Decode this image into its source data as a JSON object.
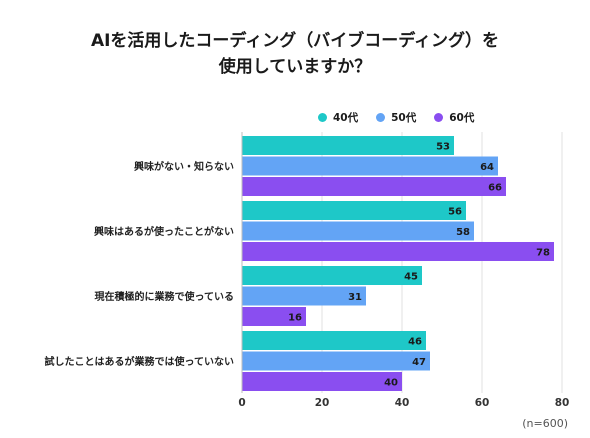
{
  "chart_data": {
    "type": "bar",
    "orientation": "horizontal",
    "title_line1": "AIを活用したコーディング（バイブコーディング）を",
    "title_line2": "使用していますか？",
    "categories": [
      "興味がない・知らない",
      "興味はあるが使ったことがない",
      "現在積極的に業務で使っている",
      "試したことはあるが業務では使っていない"
    ],
    "series": [
      {
        "name": "40代",
        "color": "#1ec8c8",
        "values": [
          53,
          56,
          45,
          46
        ]
      },
      {
        "name": "50代",
        "color": "#63a4f5",
        "values": [
          64,
          58,
          31,
          47
        ]
      },
      {
        "name": "60代",
        "color": "#8a4ef0",
        "values": [
          66,
          78,
          16,
          40
        ]
      }
    ],
    "xlim": [
      0,
      80
    ],
    "xticks": [
      0,
      20,
      40,
      60,
      80
    ],
    "grid": true,
    "legend_position": "top-right",
    "note": "(n=600)"
  }
}
